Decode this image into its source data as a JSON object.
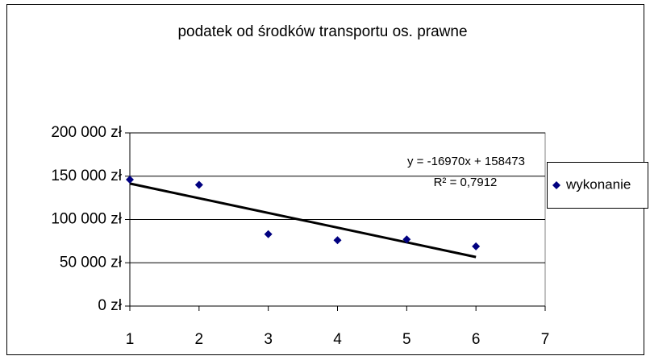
{
  "chart_data": {
    "type": "scatter",
    "title": "podatek od środków transportu os. prawne",
    "series": [
      {
        "name": "wykonanie",
        "color": "#000080",
        "x": [
          1,
          2,
          3,
          4,
          5,
          6
        ],
        "values": [
          146000,
          140000,
          83000,
          76000,
          77000,
          69000
        ]
      }
    ],
    "xlim": [
      1,
      7
    ],
    "xticks": [
      1,
      2,
      3,
      4,
      5,
      6,
      7
    ],
    "ylim": [
      0,
      200000
    ],
    "yticks": [
      {
        "value": 0,
        "label": "0 zł"
      },
      {
        "value": 50000,
        "label": "50 000 zł"
      },
      {
        "value": 100000,
        "label": "100 000 zł"
      },
      {
        "value": 150000,
        "label": "150 000 zł"
      },
      {
        "value": 200000,
        "label": "200 000 zł"
      }
    ],
    "grid": true,
    "legend": "right",
    "trendline": {
      "label": "y = -16970x + 158473",
      "r2_label": "R² = 0,7912",
      "slope": -16970,
      "intercept": 158473,
      "color": "#000000"
    }
  }
}
